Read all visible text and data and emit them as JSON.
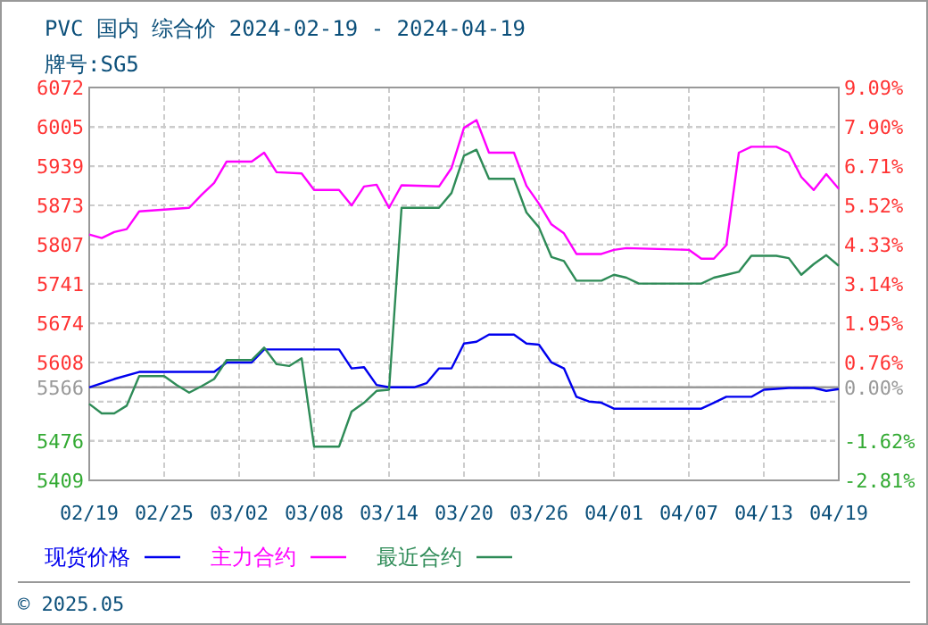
{
  "chart_data": {
    "type": "line",
    "title": "PVC 国内 综合价 2024-02-19 - 2024-04-19",
    "subtitle": "牌号:SG5",
    "xlim": [
      "2024-02-19",
      "2024-04-19"
    ],
    "xticks": [
      {
        "value": "2024-02-19",
        "label": "02/19"
      },
      {
        "value": "2024-02-25",
        "label": "02/25"
      },
      {
        "value": "2024-03-02",
        "label": "03/02"
      },
      {
        "value": "2024-03-08",
        "label": "03/08"
      },
      {
        "value": "2024-03-14",
        "label": "03/14"
      },
      {
        "value": "2024-03-20",
        "label": "03/20"
      },
      {
        "value": "2024-03-26",
        "label": "03/26"
      },
      {
        "value": "2024-04-01",
        "label": "04/01"
      },
      {
        "value": "2024-04-07",
        "label": "04/07"
      },
      {
        "value": "2024-04-13",
        "label": "04/13"
      },
      {
        "value": "2024-04-19",
        "label": "04/19"
      }
    ],
    "ylim": [
      5409,
      6072
    ],
    "yticks": [
      6072,
      6005,
      5939,
      5873,
      5807,
      5741,
      5674,
      5608,
      5566,
      {
        "value": 5542,
        "label": null
      },
      5476,
      5409
    ],
    "y2lim": [
      -2.81,
      9.09
    ],
    "y2ticks": [
      {
        "value": 9.09,
        "label": "9.09%"
      },
      {
        "value": 7.9,
        "label": "7.90%"
      },
      {
        "value": 6.71,
        "label": "6.71%"
      },
      {
        "value": 5.52,
        "label": "5.52%"
      },
      {
        "value": 4.33,
        "label": "4.33%"
      },
      {
        "value": 3.14,
        "label": "3.14%"
      },
      {
        "value": 1.95,
        "label": "1.95%"
      },
      {
        "value": 0.76,
        "label": "0.76%"
      },
      {
        "value": 0,
        "label": "0.00%"
      },
      {
        "value": -0.43,
        "label": null
      },
      {
        "value": -1.62,
        "label": "-1.62%"
      },
      {
        "value": -2.81,
        "label": "-2.81%"
      }
    ],
    "ref_lines": [
      {
        "axis": "y",
        "value": 5566,
        "color": "#999999"
      }
    ],
    "grid": true,
    "legend": "bottom",
    "line_style": "solid",
    "marker": "none",
    "annotations": [
      "© 2025.05"
    ],
    "series": [
      {
        "name": "现货价格",
        "color": "#0000ee",
        "x": [
          "2024-02-19",
          "2024-02-21",
          "2024-02-23",
          "2024-02-29",
          "2024-03-01",
          "2024-03-03",
          "2024-03-04",
          "2024-03-10",
          "2024-03-11",
          "2024-03-12",
          "2024-03-13",
          "2024-03-14",
          "2024-03-16",
          "2024-03-17",
          "2024-03-18",
          "2024-03-19",
          "2024-03-20",
          "2024-03-21",
          "2024-03-22",
          "2024-03-24",
          "2024-03-25",
          "2024-03-26",
          "2024-03-27",
          "2024-03-28",
          "2024-03-29",
          "2024-03-30",
          "2024-03-31",
          "2024-04-01",
          "2024-04-08",
          "2024-04-09",
          "2024-04-10",
          "2024-04-12",
          "2024-04-13",
          "2024-04-15",
          "2024-04-17",
          "2024-04-18",
          "2024-04-19"
        ],
        "values": [
          5566,
          5580,
          5592,
          5592,
          5608,
          5608,
          5630,
          5630,
          5598,
          5600,
          5570,
          5566,
          5566,
          5573,
          5598,
          5598,
          5640,
          5643,
          5655,
          5655,
          5640,
          5638,
          5608,
          5598,
          5550,
          5542,
          5540,
          5530,
          5530,
          5540,
          5550,
          5550,
          5562,
          5565,
          5565,
          5560,
          5563
        ]
      },
      {
        "name": "主力合约",
        "color": "#ff00ff",
        "x": [
          "2024-02-19",
          "2024-02-20",
          "2024-02-21",
          "2024-02-22",
          "2024-02-23",
          "2024-02-27",
          "2024-02-28",
          "2024-02-29",
          "2024-03-01",
          "2024-03-03",
          "2024-03-04",
          "2024-03-05",
          "2024-03-07",
          "2024-03-08",
          "2024-03-10",
          "2024-03-11",
          "2024-03-12",
          "2024-03-13",
          "2024-03-14",
          "2024-03-15",
          "2024-03-18",
          "2024-03-19",
          "2024-03-20",
          "2024-03-21",
          "2024-03-22",
          "2024-03-24",
          "2024-03-25",
          "2024-03-26",
          "2024-03-27",
          "2024-03-28",
          "2024-03-29",
          "2024-03-31",
          "2024-04-01",
          "2024-04-02",
          "2024-04-07",
          "2024-04-08",
          "2024-04-09",
          "2024-04-10",
          "2024-04-11",
          "2024-04-12",
          "2024-04-14",
          "2024-04-15",
          "2024-04-16",
          "2024-04-17",
          "2024-04-18",
          "2024-04-19"
        ],
        "values": [
          5824,
          5818,
          5828,
          5833,
          5863,
          5869,
          5891,
          5911,
          5947,
          5947,
          5962,
          5929,
          5927,
          5899,
          5899,
          5873,
          5905,
          5908,
          5869,
          5907,
          5905,
          5936,
          6004,
          6017,
          5962,
          5962,
          5906,
          5876,
          5841,
          5826,
          5791,
          5791,
          5798,
          5801,
          5798,
          5783,
          5783,
          5806,
          5962,
          5972,
          5972,
          5962,
          5921,
          5899,
          5926,
          5901
        ]
      },
      {
        "name": "最近合约",
        "color": "#2e8b57",
        "x": [
          "2024-02-19",
          "2024-02-20",
          "2024-02-21",
          "2024-02-22",
          "2024-02-23",
          "2024-02-25",
          "2024-02-26",
          "2024-02-27",
          "2024-02-28",
          "2024-02-29",
          "2024-03-01",
          "2024-03-03",
          "2024-03-04",
          "2024-03-05",
          "2024-03-06",
          "2024-03-07",
          "2024-03-08",
          "2024-03-10",
          "2024-03-11",
          "2024-03-12",
          "2024-03-13",
          "2024-03-14",
          "2024-03-15",
          "2024-03-18",
          "2024-03-19",
          "2024-03-20",
          "2024-03-21",
          "2024-03-22",
          "2024-03-24",
          "2024-03-25",
          "2024-03-26",
          "2024-03-27",
          "2024-03-28",
          "2024-03-29",
          "2024-03-31",
          "2024-04-01",
          "2024-04-02",
          "2024-04-03",
          "2024-04-08",
          "2024-04-09",
          "2024-04-10",
          "2024-04-11",
          "2024-04-12",
          "2024-04-14",
          "2024-04-15",
          "2024-04-16",
          "2024-04-17",
          "2024-04-18",
          "2024-04-19"
        ],
        "values": [
          5538,
          5522,
          5522,
          5535,
          5585,
          5585,
          5570,
          5557,
          5568,
          5580,
          5612,
          5612,
          5633,
          5605,
          5602,
          5615,
          5466,
          5466,
          5525,
          5540,
          5560,
          5562,
          5869,
          5869,
          5894,
          5957,
          5967,
          5918,
          5918,
          5861,
          5836,
          5786,
          5779,
          5746,
          5746,
          5756,
          5751,
          5741,
          5741,
          5751,
          5756,
          5761,
          5788,
          5788,
          5784,
          5756,
          5774,
          5789,
          5771
        ]
      }
    ]
  }
}
